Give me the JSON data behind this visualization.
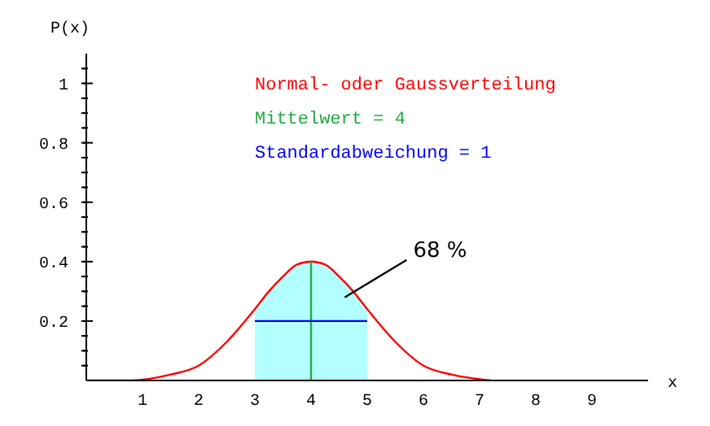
{
  "chart_data": {
    "type": "line",
    "title": "Normal- oder Gaussverteilung",
    "xlabel": "x",
    "ylabel": "P(x)",
    "annotations": [
      "Mittelwert = 4",
      "Standardabweichung = 1",
      "68 %"
    ],
    "series": [
      {
        "type": "area",
        "color": "#b3ffff",
        "x": [
          3,
          3.25,
          3.5,
          3.75,
          4,
          4.25,
          4.5,
          4.75,
          5
        ],
        "values": [
          0.24,
          0.3,
          0.35,
          0.39,
          0.4,
          0.39,
          0.35,
          0.3,
          0.24
        ]
      },
      {
        "color": "#ff0000",
        "x": [
          0,
          0.8,
          1.5,
          2,
          2.5,
          3,
          3.25,
          3.5,
          3.75,
          4,
          4.25,
          4.5,
          4.75,
          5,
          5.5,
          6,
          6.5,
          7.2
        ],
        "values": [
          0,
          0,
          0.02,
          0.05,
          0.13,
          0.24,
          0.3,
          0.35,
          0.39,
          0.4,
          0.39,
          0.35,
          0.3,
          0.24,
          0.13,
          0.05,
          0.02,
          0
        ]
      },
      {
        "color": "#22aa44",
        "x": [
          4,
          4
        ],
        "values": [
          0,
          0.4
        ]
      },
      {
        "color": "#0000ff",
        "x": [
          3,
          5
        ],
        "values": [
          0.2,
          0.2
        ]
      }
    ],
    "xlim": [
      0,
      10
    ],
    "xticks": [
      1,
      2,
      3,
      4,
      5,
      6,
      7,
      8,
      9
    ],
    "ylim": [
      0,
      1.1
    ],
    "yticks": [
      {
        "value": 0.05,
        "label": null
      },
      {
        "value": 0.1,
        "label": null
      },
      {
        "value": 0.15,
        "label": null
      },
      0.2,
      {
        "value": 0.25,
        "label": null
      },
      {
        "value": 0.3,
        "label": null
      },
      {
        "value": 0.35,
        "label": null
      },
      0.4,
      {
        "value": 0.45,
        "label": null
      },
      {
        "value": 0.5,
        "label": null
      },
      {
        "value": 0.55,
        "label": null
      },
      0.6,
      {
        "value": 0.65,
        "label": null
      },
      {
        "value": 0.7,
        "label": null
      },
      {
        "value": 0.75,
        "label": null
      },
      0.8,
      {
        "value": 0.85,
        "label": null
      },
      {
        "value": 0.9,
        "label": null
      },
      {
        "value": 0.95,
        "label": null
      },
      1,
      {
        "value": 1.05,
        "label": null
      }
    ],
    "marker": "none",
    "line_style": "solid"
  }
}
